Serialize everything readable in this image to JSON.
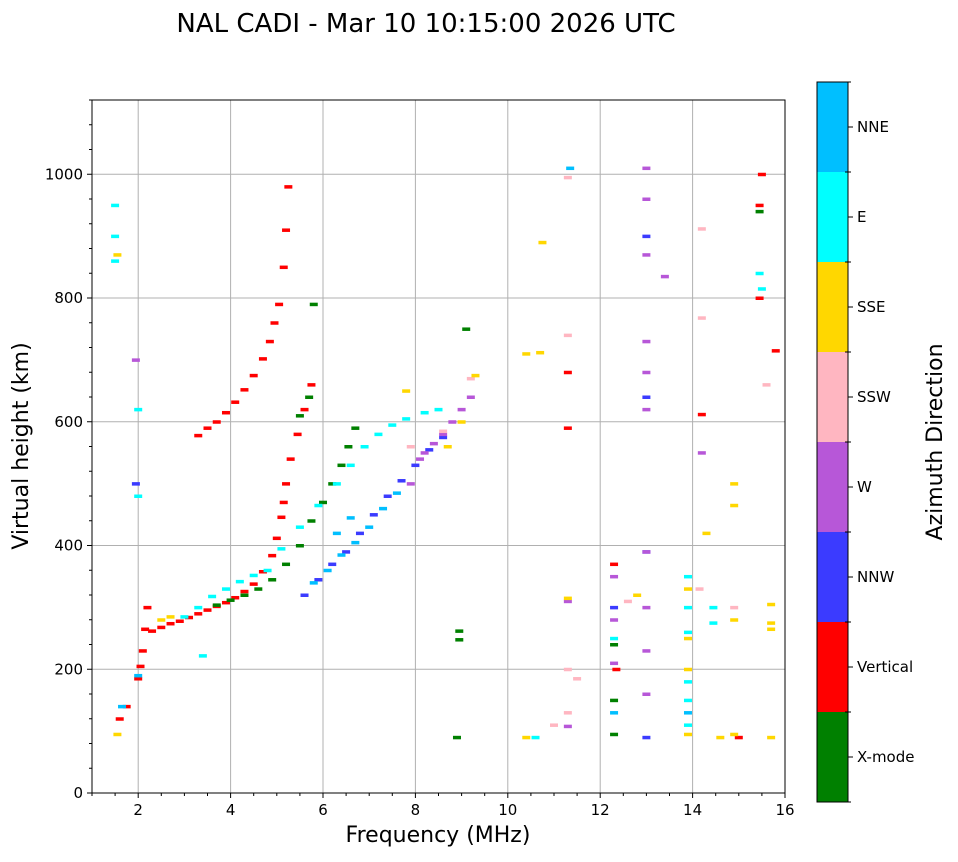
{
  "chart_data": {
    "type": "scatter",
    "title": "NAL CADI - Mar 10 10:15:00 2026 UTC",
    "xlabel": "Frequency (MHz)",
    "ylabel": "Virtual height (km)",
    "xlim": [
      1.0,
      16.0
    ],
    "ylim": [
      0,
      1120
    ],
    "xticks": [
      2,
      4,
      6,
      8,
      10,
      12,
      14,
      16
    ],
    "yticks": [
      0,
      200,
      400,
      600,
      800,
      1000
    ],
    "grid": true,
    "colorbar": {
      "title": "Azimuth Direction",
      "categories": [
        {
          "name": "X-mode",
          "color": "#008000"
        },
        {
          "name": "Vertical",
          "color": "#ff0000"
        },
        {
          "name": "NNW",
          "color": "#3b3bff"
        },
        {
          "name": "W",
          "color": "#b757d8"
        },
        {
          "name": "SSW",
          "color": "#ffb6c1"
        },
        {
          "name": "SSE",
          "color": "#ffd700"
        },
        {
          "name": "E",
          "color": "#00ffff"
        },
        {
          "name": "NNE",
          "color": "#00bfff"
        }
      ]
    },
    "series": [
      {
        "name": "Vertical",
        "color": "#ff0000",
        "points": [
          [
            2.3,
            262
          ],
          [
            2.5,
            268
          ],
          [
            2.7,
            274
          ],
          [
            2.9,
            278
          ],
          [
            3.1,
            284
          ],
          [
            3.3,
            290
          ],
          [
            3.5,
            296
          ],
          [
            3.7,
            302
          ],
          [
            3.9,
            308
          ],
          [
            4.1,
            316
          ],
          [
            4.3,
            326
          ],
          [
            4.5,
            338
          ],
          [
            4.7,
            358
          ],
          [
            4.9,
            384
          ],
          [
            5.0,
            412
          ],
          [
            5.1,
            446
          ],
          [
            5.15,
            470
          ],
          [
            5.2,
            500
          ],
          [
            5.3,
            540
          ],
          [
            5.45,
            580
          ],
          [
            5.6,
            620
          ],
          [
            5.75,
            660
          ],
          [
            3.3,
            578
          ],
          [
            3.5,
            590
          ],
          [
            3.7,
            600
          ],
          [
            3.9,
            615
          ],
          [
            4.1,
            632
          ],
          [
            4.3,
            652
          ],
          [
            4.5,
            675
          ],
          [
            4.7,
            702
          ],
          [
            4.85,
            730
          ],
          [
            4.95,
            760
          ],
          [
            5.05,
            790
          ],
          [
            5.15,
            850
          ],
          [
            5.2,
            910
          ],
          [
            5.25,
            980
          ],
          [
            2.0,
            185
          ],
          [
            2.05,
            205
          ],
          [
            2.1,
            230
          ],
          [
            2.15,
            265
          ],
          [
            2.2,
            300
          ],
          [
            1.6,
            120
          ],
          [
            1.75,
            140
          ],
          [
            11.3,
            590
          ],
          [
            11.3,
            680
          ],
          [
            14.2,
            612
          ],
          [
            15.0,
            90
          ],
          [
            15.45,
            800
          ],
          [
            15.45,
            950
          ],
          [
            15.5,
            1000
          ],
          [
            15.8,
            715
          ],
          [
            12.3,
            370
          ],
          [
            12.35,
            200
          ]
        ]
      },
      {
        "name": "X-mode",
        "color": "#008000",
        "points": [
          [
            3.7,
            304
          ],
          [
            4.0,
            312
          ],
          [
            4.3,
            320
          ],
          [
            4.6,
            330
          ],
          [
            4.9,
            345
          ],
          [
            5.2,
            370
          ],
          [
            5.5,
            400
          ],
          [
            5.75,
            440
          ],
          [
            6.0,
            470
          ],
          [
            6.2,
            500
          ],
          [
            6.4,
            530
          ],
          [
            6.55,
            560
          ],
          [
            6.7,
            590
          ],
          [
            5.5,
            610
          ],
          [
            5.7,
            640
          ],
          [
            5.8,
            790
          ],
          [
            8.95,
            262
          ],
          [
            8.95,
            248
          ],
          [
            8.9,
            90
          ],
          [
            12.3,
            240
          ],
          [
            12.3,
            150
          ],
          [
            12.3,
            95
          ],
          [
            15.45,
            940
          ],
          [
            9.1,
            750
          ]
        ]
      },
      {
        "name": "NNW",
        "color": "#3b3bff",
        "points": [
          [
            5.6,
            320
          ],
          [
            5.9,
            345
          ],
          [
            6.2,
            370
          ],
          [
            6.5,
            390
          ],
          [
            6.8,
            420
          ],
          [
            7.1,
            450
          ],
          [
            7.4,
            480
          ],
          [
            7.7,
            505
          ],
          [
            8.0,
            530
          ],
          [
            8.3,
            555
          ],
          [
            8.6,
            575
          ],
          [
            1.95,
            500
          ],
          [
            13.0,
            640
          ],
          [
            13.0,
            900
          ],
          [
            13.0,
            90
          ],
          [
            12.3,
            300
          ],
          [
            13.0,
            390
          ]
        ]
      },
      {
        "name": "W",
        "color": "#b757d8",
        "points": [
          [
            8.2,
            550
          ],
          [
            8.4,
            565
          ],
          [
            8.6,
            580
          ],
          [
            8.8,
            600
          ],
          [
            9.0,
            620
          ],
          [
            9.2,
            640
          ],
          [
            7.9,
            500
          ],
          [
            8.1,
            540
          ],
          [
            1.95,
            700
          ],
          [
            12.3,
            350
          ],
          [
            12.3,
            280
          ],
          [
            12.3,
            210
          ],
          [
            13.0,
            1010
          ],
          [
            13.0,
            960
          ],
          [
            13.0,
            870
          ],
          [
            13.0,
            730
          ],
          [
            13.0,
            680
          ],
          [
            13.0,
            620
          ],
          [
            13.0,
            390
          ],
          [
            13.0,
            300
          ],
          [
            13.0,
            230
          ],
          [
            13.0,
            160
          ],
          [
            13.4,
            835
          ],
          [
            14.2,
            550
          ],
          [
            11.3,
            310
          ],
          [
            11.3,
            108
          ]
        ]
      },
      {
        "name": "SSW",
        "color": "#ffb6c1",
        "points": [
          [
            9.2,
            670
          ],
          [
            8.6,
            585
          ],
          [
            7.9,
            560
          ],
          [
            11.3,
            740
          ],
          [
            11.3,
            995
          ],
          [
            11.3,
            200
          ],
          [
            11.3,
            130
          ],
          [
            11.5,
            185
          ],
          [
            14.2,
            912
          ],
          [
            14.2,
            768
          ],
          [
            14.15,
            330
          ],
          [
            14.9,
            300
          ],
          [
            15.6,
            660
          ],
          [
            12.6,
            310
          ],
          [
            11.0,
            110
          ]
        ]
      },
      {
        "name": "SSE",
        "color": "#ffd700",
        "points": [
          [
            8.7,
            560
          ],
          [
            9.0,
            600
          ],
          [
            9.3,
            675
          ],
          [
            7.8,
            650
          ],
          [
            10.4,
            710
          ],
          [
            10.7,
            712
          ],
          [
            10.75,
            890
          ],
          [
            10.4,
            90
          ],
          [
            11.3,
            315
          ],
          [
            12.8,
            320
          ],
          [
            13.9,
            330
          ],
          [
            13.9,
            250
          ],
          [
            13.9,
            200
          ],
          [
            13.9,
            95
          ],
          [
            14.3,
            420
          ],
          [
            14.9,
            500
          ],
          [
            14.9,
            465
          ],
          [
            14.9,
            280
          ],
          [
            14.9,
            95
          ],
          [
            14.6,
            90
          ],
          [
            15.7,
            305
          ],
          [
            15.7,
            275
          ],
          [
            15.7,
            265
          ],
          [
            15.7,
            90
          ],
          [
            1.55,
            870
          ],
          [
            1.55,
            95
          ],
          [
            2.5,
            280
          ],
          [
            2.7,
            285
          ]
        ]
      },
      {
        "name": "E",
        "color": "#00ffff",
        "points": [
          [
            3.0,
            285
          ],
          [
            3.3,
            300
          ],
          [
            3.6,
            318
          ],
          [
            3.9,
            330
          ],
          [
            4.2,
            342
          ],
          [
            4.5,
            352
          ],
          [
            4.8,
            360
          ],
          [
            5.1,
            395
          ],
          [
            5.5,
            430
          ],
          [
            5.9,
            465
          ],
          [
            6.3,
            500
          ],
          [
            6.6,
            530
          ],
          [
            6.9,
            560
          ],
          [
            7.2,
            580
          ],
          [
            7.5,
            595
          ],
          [
            7.8,
            605
          ],
          [
            8.2,
            615
          ],
          [
            8.5,
            620
          ],
          [
            1.5,
            950
          ],
          [
            1.5,
            900
          ],
          [
            1.5,
            860
          ],
          [
            2.0,
            480
          ],
          [
            2.0,
            620
          ],
          [
            3.4,
            222
          ],
          [
            12.3,
            250
          ],
          [
            13.9,
            350
          ],
          [
            13.9,
            300
          ],
          [
            13.9,
            260
          ],
          [
            13.9,
            180
          ],
          [
            13.9,
            150
          ],
          [
            13.9,
            110
          ],
          [
            14.45,
            300
          ],
          [
            14.45,
            275
          ],
          [
            15.45,
            840
          ],
          [
            15.5,
            815
          ],
          [
            10.6,
            90
          ]
        ]
      },
      {
        "name": "NNE",
        "color": "#00bfff",
        "points": [
          [
            5.8,
            340
          ],
          [
            6.1,
            360
          ],
          [
            6.4,
            385
          ],
          [
            6.7,
            405
          ],
          [
            7.0,
            430
          ],
          [
            7.3,
            460
          ],
          [
            7.6,
            485
          ],
          [
            6.3,
            420
          ],
          [
            6.6,
            445
          ],
          [
            11.35,
            1010
          ],
          [
            12.3,
            130
          ],
          [
            13.9,
            130
          ],
          [
            2.0,
            190
          ],
          [
            1.65,
            140
          ]
        ]
      }
    ]
  }
}
